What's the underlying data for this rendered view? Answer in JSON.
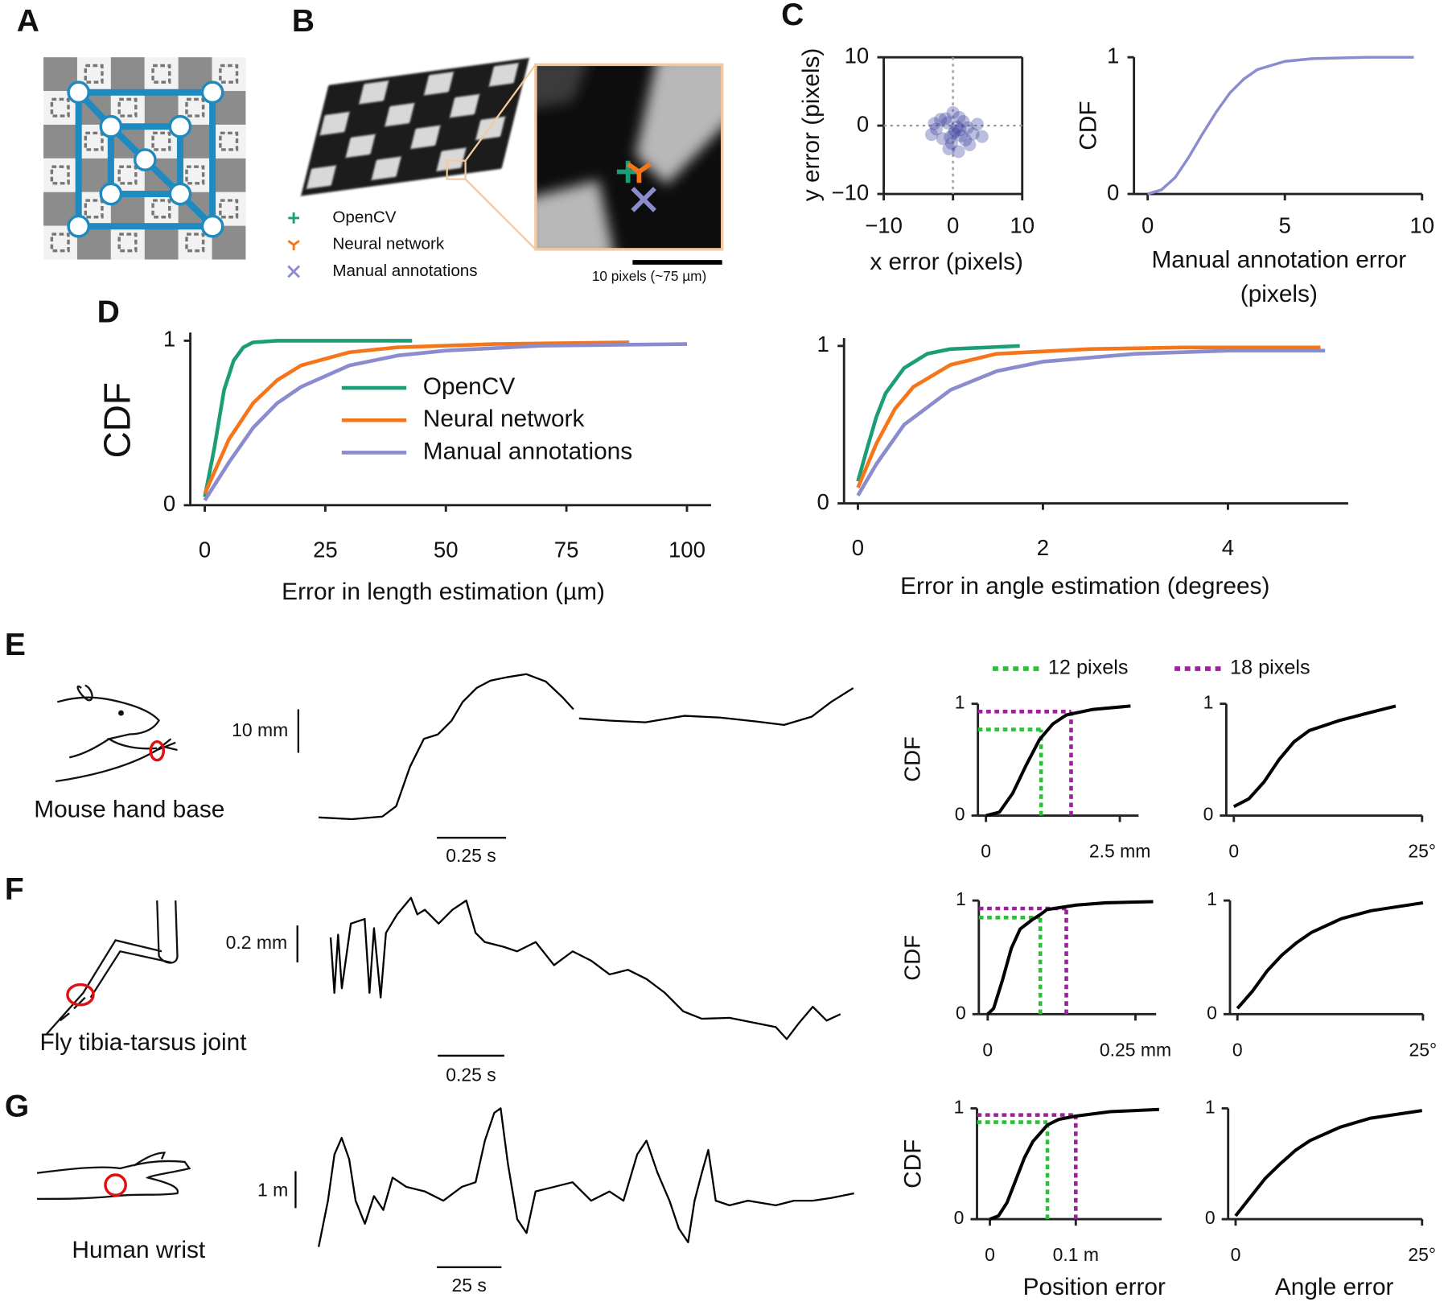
{
  "figure": {
    "panel_labels": [
      "A",
      "B",
      "C",
      "D",
      "E",
      "F",
      "G"
    ],
    "b_legend": [
      {
        "name": "OpenCV",
        "color": "#1b9e77"
      },
      {
        "name": "Neural network",
        "color": "#f5761a"
      },
      {
        "name": "Manual annotations",
        "color": "#8a8cce"
      }
    ],
    "b_scalebar": "10 pixels (~75 µm)",
    "threshold_legend": [
      {
        "name": "12 pixels",
        "color": "#2dbf3a"
      },
      {
        "name": "18 pixels",
        "color": "#a01f9e"
      }
    ],
    "body_labels": [
      "Mouse hand base",
      "Fly tibia-tarsus joint",
      "Human wrist"
    ]
  },
  "chart_data": [
    {
      "type": "scatter",
      "xlabel": "x error (pixels)",
      "ylabel": "y error (pixels)",
      "x": [
        0.3,
        1.2,
        -0.8,
        2.1,
        -1.5,
        0.9,
        -0.2,
        1.8,
        -2.4,
        0.6,
        2.9,
        -1.1,
        0.1,
        1.5,
        -0.6,
        3.5,
        -3.1,
        0.8,
        -1.8,
        2.4,
        0.0,
        1.0,
        -0.4,
        4.2,
        -2.7
      ],
      "values": [
        -0.8,
        -1.5,
        0.4,
        -0.3,
        -1.9,
        1.2,
        -2.6,
        -2.1,
        -0.5,
        -0.2,
        -1.2,
        1.0,
        -1.1,
        0.6,
        -3.4,
        0.2,
        -1.3,
        -3.8,
        0.9,
        -2.8,
        1.9,
        -0.6,
        -1.7,
        -1.6,
        0.3
      ],
      "color": "#3f44a0",
      "xlim": [
        -10,
        10
      ],
      "ylim": [
        -10,
        10
      ],
      "xticks": [
        {
          "value": -10,
          "label": "−10"
        },
        0,
        10
      ],
      "yticks": [
        {
          "value": -10,
          "label": "−10"
        },
        0,
        10
      ],
      "crosshair": true,
      "frame": true
    },
    {
      "type": "line",
      "ylabel": "CDF",
      "xlabel": [
        "Manual annotation error",
        "(pixels)"
      ],
      "x": [
        0,
        0.5,
        1,
        1.5,
        2,
        2.5,
        3,
        3.5,
        4,
        5,
        6,
        8,
        9.7
      ],
      "values": [
        0,
        0.03,
        0.12,
        0.27,
        0.44,
        0.6,
        0.74,
        0.84,
        0.91,
        0.97,
        0.99,
        1,
        1
      ],
      "color": "#8a8cce",
      "xlim": [
        -0.5,
        10
      ],
      "ylim": [
        0,
        1
      ],
      "xticks": [
        0,
        5,
        10
      ],
      "yticks": [
        0,
        1
      ]
    },
    {
      "type": "line",
      "ylabel": "CDF",
      "xlabel": "Error in length estimation (µm)",
      "legend": "center",
      "series": [
        {
          "name": "OpenCV",
          "color": "#1b9e77",
          "x": [
            0,
            2,
            4,
            6,
            8,
            10,
            15,
            43
          ],
          "values": [
            0.05,
            0.35,
            0.7,
            0.88,
            0.96,
            0.99,
            1,
            1
          ]
        },
        {
          "name": "Neural network",
          "color": "#f5761a",
          "x": [
            0,
            5,
            10,
            15,
            20,
            30,
            40,
            60,
            88
          ],
          "values": [
            0.07,
            0.4,
            0.62,
            0.76,
            0.85,
            0.93,
            0.96,
            0.98,
            0.99
          ]
        },
        {
          "name": "Manual annotations",
          "color": "#8a8cce",
          "x": [
            0,
            5,
            10,
            15,
            20,
            30,
            40,
            50,
            70,
            100
          ],
          "values": [
            0.03,
            0.26,
            0.47,
            0.62,
            0.72,
            0.85,
            0.91,
            0.94,
            0.97,
            0.98
          ]
        }
      ],
      "xlim": [
        -3,
        105
      ],
      "ylim": [
        0,
        1.05
      ],
      "xticks": [
        0,
        25,
        50,
        75,
        100
      ],
      "yticks": [
        0,
        1
      ]
    },
    {
      "type": "line",
      "xlabel": "Error in angle estimation (degrees)",
      "series": [
        {
          "name": "OpenCV",
          "color": "#1b9e77",
          "x": [
            0,
            0.1,
            0.2,
            0.3,
            0.5,
            0.75,
            1,
            1.75
          ],
          "values": [
            0.14,
            0.35,
            0.55,
            0.7,
            0.86,
            0.95,
            0.98,
            1
          ]
        },
        {
          "name": "Neural network",
          "color": "#f5761a",
          "x": [
            0,
            0.2,
            0.4,
            0.6,
            1,
            1.5,
            2.5,
            3.5,
            5
          ],
          "values": [
            0.1,
            0.38,
            0.6,
            0.74,
            0.88,
            0.95,
            0.98,
            0.99,
            0.99
          ]
        },
        {
          "name": "Manual annotations",
          "color": "#8a8cce",
          "x": [
            0,
            0.2,
            0.5,
            1,
            1.5,
            2,
            3,
            4,
            5.05
          ],
          "values": [
            0.05,
            0.25,
            0.5,
            0.72,
            0.84,
            0.9,
            0.95,
            0.97,
            0.97
          ]
        }
      ],
      "xlim": [
        -0.15,
        5.3
      ],
      "ylim": [
        0,
        1.05
      ],
      "xticks": [
        0,
        2,
        4
      ],
      "yticks": [
        0,
        1
      ]
    },
    {
      "type": "trace",
      "color": "#000000",
      "x": [
        0,
        0.12,
        0.23,
        0.28,
        0.33,
        0.38,
        0.43,
        0.48,
        0.52,
        0.57,
        0.62,
        0.68,
        0.75,
        0.82,
        0.88,
        0.92,
        0.93,
        0.94,
        1.05,
        1.18,
        1.32,
        1.45,
        1.58,
        1.68,
        1.78,
        1.85,
        1.93
      ],
      "values": [
        0,
        -0.4,
        0.2,
        2.6,
        11.7,
        18.1,
        19.1,
        22.3,
        26.6,
        29.8,
        31.5,
        32.3,
        33.0,
        31.3,
        27.7,
        24.9,
        null,
        22.8,
        22.3,
        21.9,
        23.4,
        23.0,
        22.1,
        21.3,
        23.2,
        26.6,
        29.8
      ],
      "scalebar_x": {
        "value": 0.25,
        "label": "0.25 s"
      },
      "scalebar_y": {
        "value": 10,
        "label": "10 mm"
      }
    },
    {
      "type": "line",
      "ylabel": "CDF",
      "color": "#000000",
      "x": [
        0,
        0.25,
        0.5,
        0.75,
        1,
        1.25,
        1.5,
        2,
        2.7
      ],
      "values": [
        0,
        0.03,
        0.2,
        0.45,
        0.68,
        0.82,
        0.9,
        0.95,
        0.98
      ],
      "xlim": [
        -0.15,
        2.85
      ],
      "ylim": [
        0,
        1
      ],
      "xticks": [
        0,
        {
          "value": 2.5,
          "label": "2.5 mm"
        }
      ],
      "yticks": [
        0,
        1
      ],
      "thresholds": [
        {
          "x": 1.03,
          "y": 0.77
        },
        {
          "x": 1.59,
          "y": 0.93
        }
      ]
    },
    {
      "type": "line",
      "color": "#000000",
      "x": [
        0,
        2,
        4,
        6,
        8,
        10,
        14,
        18,
        21.5
      ],
      "values": [
        0.08,
        0.15,
        0.3,
        0.5,
        0.66,
        0.76,
        0.85,
        0.92,
        0.98
      ],
      "xlim": [
        -1,
        25
      ],
      "ylim": [
        0,
        1
      ],
      "xticks": [
        0,
        {
          "value": 25,
          "label": "25°"
        }
      ],
      "yticks": [
        0,
        1
      ]
    },
    {
      "type": "trace",
      "color": "#000000",
      "x": [
        0,
        0.014,
        0.028,
        0.042,
        0.076,
        0.128,
        0.146,
        0.163,
        0.188,
        0.208,
        0.25,
        0.302,
        0.326,
        0.354,
        0.406,
        0.458,
        0.51,
        0.545,
        0.58,
        0.649,
        0.701,
        0.771,
        0.84,
        0.91,
        0.979,
        1.049,
        1.118,
        1.188,
        1.257,
        1.326,
        1.396,
        1.5,
        1.604,
        1.674,
        1.715,
        1.76,
        1.813,
        1.865,
        1.917
      ],
      "values": [
        0.425,
        0.125,
        0.44,
        0.15,
        0.5,
        0.525,
        0.125,
        0.475,
        0.1,
        0.45,
        0.55,
        0.64,
        0.55,
        0.575,
        0.5,
        0.575,
        0.625,
        0.45,
        0.4,
        0.375,
        0.35,
        0.4,
        0.275,
        0.35,
        0.3,
        0.225,
        0.25,
        0.2,
        0.125,
        0.025,
        -0.015,
        -0.01,
        -0.04,
        -0.06,
        -0.125,
        -0.04,
        0.05,
        -0.025,
        0.01
      ],
      "scalebar_x": {
        "value": 0.25,
        "label": "0.25 s"
      },
      "scalebar_y": {
        "value": 0.2,
        "label": "0.2 mm"
      }
    },
    {
      "type": "line",
      "ylabel": "CDF",
      "color": "#000000",
      "x": [
        0,
        0.01,
        0.025,
        0.04,
        0.055,
        0.075,
        0.09,
        0.1,
        0.15,
        0.2,
        0.28
      ],
      "values": [
        0,
        0.05,
        0.3,
        0.58,
        0.75,
        0.83,
        0.88,
        0.92,
        0.96,
        0.98,
        0.99
      ],
      "xlim": [
        -0.015,
        0.285
      ],
      "ylim": [
        0,
        1
      ],
      "xticks": [
        0,
        {
          "value": 0.25,
          "label": "0.25 mm"
        }
      ],
      "yticks": [
        0,
        1
      ],
      "thresholds": [
        {
          "x": 0.089,
          "y": 0.85
        },
        {
          "x": 0.133,
          "y": 0.93
        }
      ]
    },
    {
      "type": "line",
      "color": "#000000",
      "x": [
        0,
        2,
        4,
        6,
        8,
        10,
        14,
        18,
        25
      ],
      "values": [
        0.05,
        0.2,
        0.38,
        0.52,
        0.63,
        0.72,
        0.84,
        0.91,
        0.98
      ],
      "xlim": [
        -1,
        25
      ],
      "ylim": [
        0,
        1
      ],
      "xticks": [
        0,
        {
          "value": 25,
          "label": "25°"
        }
      ],
      "yticks": [
        0,
        1
      ]
    },
    {
      "type": "trace",
      "color": "#000000",
      "x": [
        0,
        3.6,
        6.1,
        8.9,
        11.8,
        14.3,
        17.9,
        21.4,
        25,
        28.6,
        33.9,
        41.1,
        48.2,
        55.4,
        60.7,
        64.3,
        67.9,
        70.4,
        73.2,
        76.8,
        80.4,
        83.9,
        91.1,
        98.2,
        105.4,
        112.5,
        117.9,
        123.2,
        126.8,
        131.1,
        135.7,
        139.3,
        142.9,
        145.4,
        148.2,
        150.7,
        153.6,
        158.9,
        166.1,
        176.8,
        183.9,
        191.1,
        198.2,
        207.1
      ],
      "values": [
        -1.25,
        0,
        1.25,
        1.7,
        1.125,
        0,
        -0.625,
        0.125,
        -0.25,
        0.625,
        0.375,
        0.25,
        0,
        0.375,
        0.5,
        1.625,
        2.375,
        2.5,
        1,
        -0.5,
        -0.875,
        0.25,
        0.375,
        0.5,
        0,
        0.25,
        0,
        1.25,
        1.625,
        0.75,
        0,
        -0.75,
        -1.125,
        0,
        0.75,
        1.375,
        0,
        -0.125,
        0,
        -0.125,
        0,
        0,
        0.075,
        0.2
      ],
      "scalebar_x": {
        "value": 25,
        "label": "25 s"
      },
      "scalebar_y": {
        "value": 1,
        "label": "1 m"
      }
    },
    {
      "type": "line",
      "ylabel": "CDF",
      "xlabel": "Position error",
      "color": "#000000",
      "x": [
        0,
        0.01,
        0.02,
        0.03,
        0.04,
        0.05,
        0.067,
        0.08,
        0.1,
        0.14,
        0.197
      ],
      "values": [
        0,
        0.03,
        0.15,
        0.35,
        0.55,
        0.7,
        0.85,
        0.9,
        0.93,
        0.97,
        0.99
      ],
      "xlim": [
        -0.015,
        0.2
      ],
      "ylim": [
        0,
        1
      ],
      "xticks": [
        0,
        {
          "value": 0.1,
          "label": "0.1 m"
        }
      ],
      "yticks": [
        0,
        1
      ],
      "thresholds": [
        {
          "x": 0.067,
          "y": 0.875
        },
        {
          "x": 0.1,
          "y": 0.94
        }
      ]
    },
    {
      "type": "line",
      "xlabel": "Angle error",
      "color": "#000000",
      "x": [
        0,
        2,
        4,
        6,
        8,
        10,
        14,
        18,
        25
      ],
      "values": [
        0.03,
        0.2,
        0.37,
        0.5,
        0.62,
        0.71,
        0.83,
        0.91,
        0.98
      ],
      "xlim": [
        -1,
        25
      ],
      "ylim": [
        0,
        1
      ],
      "xticks": [
        0,
        {
          "value": 25,
          "label": "25°"
        }
      ],
      "yticks": [
        0,
        1
      ]
    }
  ]
}
